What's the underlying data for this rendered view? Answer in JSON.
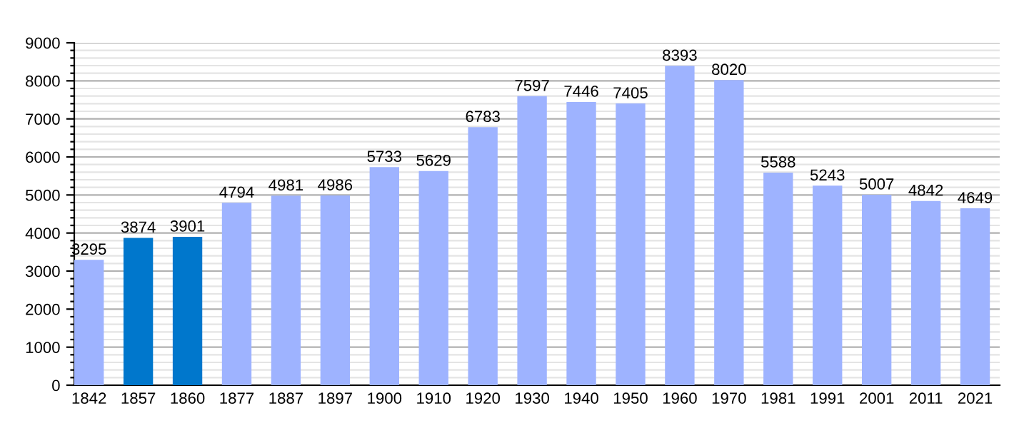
{
  "chart_data": {
    "type": "bar",
    "categories": [
      "1842",
      "1857",
      "1860",
      "1877",
      "1887",
      "1897",
      "1900",
      "1910",
      "1920",
      "1930",
      "1940",
      "1950",
      "1960",
      "1970",
      "1981",
      "1991",
      "2001",
      "2011",
      "2021"
    ],
    "values": [
      3295,
      3874,
      3901,
      4794,
      4981,
      4986,
      5733,
      5629,
      6783,
      7597,
      7446,
      7405,
      8393,
      8020,
      5588,
      5243,
      5007,
      4842,
      4649
    ],
    "colors": [
      "#9eb3ff",
      "#0077cc",
      "#0077cc",
      "#9eb3ff",
      "#9eb3ff",
      "#9eb3ff",
      "#9eb3ff",
      "#9eb3ff",
      "#9eb3ff",
      "#9eb3ff",
      "#9eb3ff",
      "#9eb3ff",
      "#9eb3ff",
      "#9eb3ff",
      "#9eb3ff",
      "#9eb3ff",
      "#9eb3ff",
      "#9eb3ff",
      "#9eb3ff"
    ],
    "ylim": [
      0,
      9000
    ],
    "yticks": [
      0,
      {
        "value": 200,
        "label": null
      },
      {
        "value": 400,
        "label": null
      },
      {
        "value": 600,
        "label": null
      },
      {
        "value": 800,
        "label": null
      },
      1000,
      {
        "value": 1200,
        "label": null
      },
      {
        "value": 1400,
        "label": null
      },
      {
        "value": 1600,
        "label": null
      },
      {
        "value": 1800,
        "label": null
      },
      2000,
      {
        "value": 2200,
        "label": null
      },
      {
        "value": 2400,
        "label": null
      },
      {
        "value": 2600,
        "label": null
      },
      {
        "value": 2800,
        "label": null
      },
      3000,
      {
        "value": 3200,
        "label": null
      },
      {
        "value": 3400,
        "label": null
      },
      {
        "value": 3600,
        "label": null
      },
      {
        "value": 3800,
        "label": null
      },
      4000,
      {
        "value": 4200,
        "label": null
      },
      {
        "value": 4400,
        "label": null
      },
      {
        "value": 4600,
        "label": null
      },
      {
        "value": 4800,
        "label": null
      },
      5000,
      {
        "value": 5200,
        "label": null
      },
      {
        "value": 5400,
        "label": null
      },
      {
        "value": 5600,
        "label": null
      },
      {
        "value": 5800,
        "label": null
      },
      6000,
      {
        "value": 6200,
        "label": null
      },
      {
        "value": 6400,
        "label": null
      },
      {
        "value": 6600,
        "label": null
      },
      {
        "value": 6800,
        "label": null
      },
      7000,
      {
        "value": 7200,
        "label": null
      },
      {
        "value": 7400,
        "label": null
      },
      {
        "value": 7600,
        "label": null
      },
      {
        "value": 7800,
        "label": null
      },
      8000,
      {
        "value": 8200,
        "label": null
      },
      {
        "value": 8400,
        "label": null
      },
      {
        "value": 8600,
        "label": null
      },
      {
        "value": 8800,
        "label": null
      },
      9000
    ],
    "grid": true,
    "data_labels": true
  }
}
